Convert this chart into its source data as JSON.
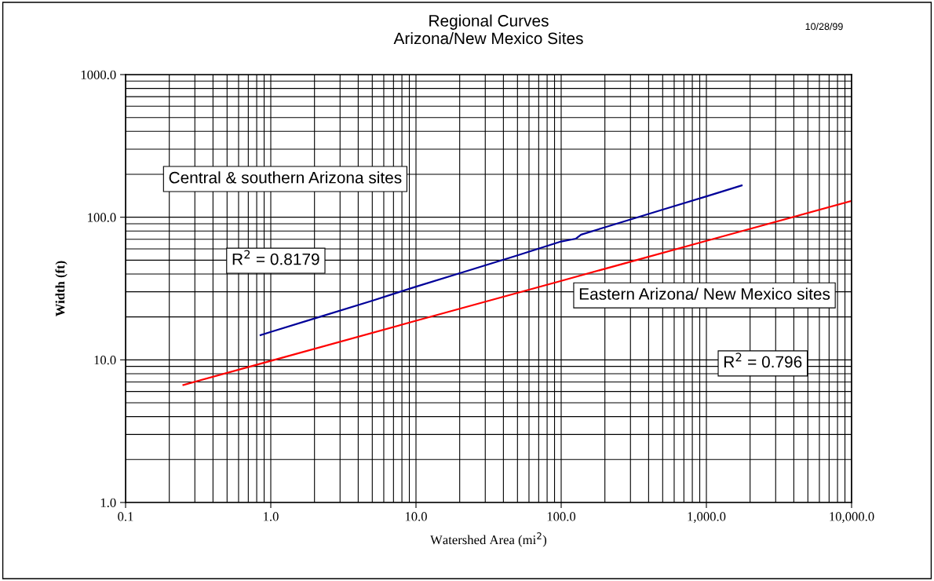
{
  "chart_data": {
    "type": "line",
    "title": "Regional Curves\nArizona/New Mexico Sites",
    "xlabel": "Watershed Area (mi$^{2}$)",
    "ylabel": "Width (ft)",
    "log": "xy",
    "grid": true,
    "legend": false,
    "marker": "none",
    "line_style": "solid",
    "xlim": [
      0.1,
      10000
    ],
    "ylim": [
      1,
      1000
    ],
    "xticks": [
      {
        "value": 0.1,
        "label": "0.1"
      },
      {
        "value": 1,
        "label": "1.0"
      },
      {
        "value": 10,
        "label": "10.0"
      },
      {
        "value": 100,
        "label": "100.0"
      },
      {
        "value": 1000,
        "label": "1,000.0"
      },
      {
        "value": 10000,
        "label": "10,000.0"
      }
    ],
    "yticks": [
      {
        "value": 1,
        "label": "1.0"
      },
      {
        "value": 10,
        "label": "10.0"
      },
      {
        "value": 100,
        "label": "100.0"
      },
      {
        "value": 1000,
        "label": "1000.0"
      }
    ],
    "series": [
      {
        "color": "#000099",
        "x": [
          0.85,
          1,
          2,
          5,
          10,
          20,
          50,
          100,
          126,
          137,
          200,
          500,
          1000,
          1750
        ],
        "values": [
          14.9,
          15.7,
          19.5,
          26,
          32.6,
          40.5,
          54,
          67.6,
          70.7,
          75.5,
          85,
          113,
          140,
          167
        ]
      },
      {
        "color": "#ff0000",
        "x": [
          0.25,
          1,
          10,
          100,
          1000,
          10000
        ],
        "values": [
          6.67,
          9.84,
          18.8,
          35.8,
          68.3,
          130
        ]
      }
    ],
    "annotations": [
      "10/28/99",
      "Central & southern Arizona sites",
      "R$^{2}$ = 0.8179",
      "Eastern Arizona/ New Mexico sites",
      "R$^{2}$ = 0.796"
    ]
  }
}
